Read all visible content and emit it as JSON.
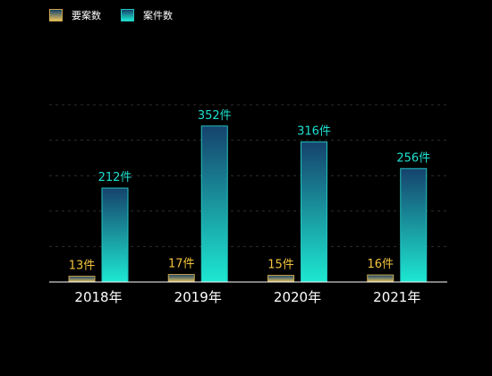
{
  "chart_data": {
    "type": "bar",
    "categories": [
      "2018年",
      "2019年",
      "2020年",
      "2021年"
    ],
    "series": [
      {
        "name": "要案数",
        "values": [
          13,
          17,
          15,
          16
        ],
        "labels": [
          "13件",
          "17件",
          "15件",
          "16件"
        ],
        "label_color": "#f2c33c",
        "gradient": [
          "#16426c",
          "#e7c35c"
        ]
      },
      {
        "name": "案件数",
        "values": [
          212,
          352,
          316,
          256
        ],
        "labels": [
          "212件",
          "352件",
          "316件",
          "256件"
        ],
        "label_color": "#1de0d0",
        "gradient": [
          "#16426c",
          "#1de8d1"
        ]
      }
    ],
    "ylim": [
      0,
      400
    ],
    "grid": true,
    "legend_position": "top-left",
    "colors": {
      "background": "#000000",
      "axis_text": "#ffffff",
      "grid": "#2e2e2e"
    }
  }
}
